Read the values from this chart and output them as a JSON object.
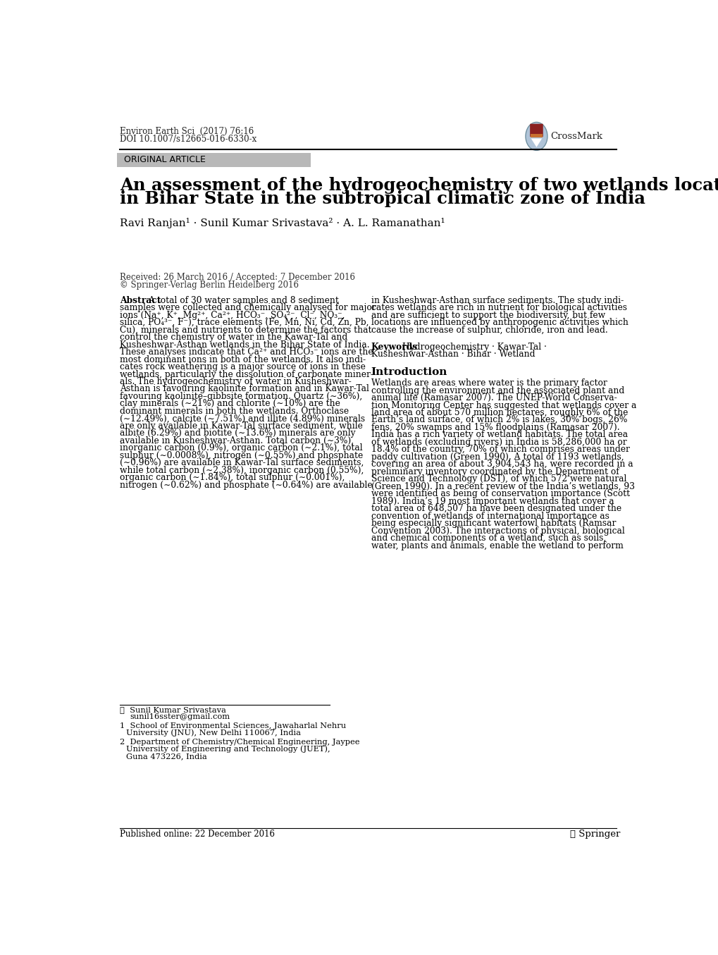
{
  "journal_line1": "Environ Earth Sci  (2017) 76:16",
  "journal_line2": "DOI 10.1007/s12665-016-6330-x",
  "original_article": "ORIGINAL ARTICLE",
  "title_line1": "An assessment of the hydrogeochemistry of two wetlands located",
  "title_line2": "in Bihar State in the subtropical climatic zone of India",
  "authors": "Ravi Ranjan¹ · Sunil Kumar Srivastava² · A. L. Ramanathan¹",
  "received": "Received: 26 March 2016 / Accepted: 7 December 2016",
  "copyright": "© Springer-Verlag Berlin Heidelberg 2016",
  "abstract_title": "Abstract",
  "abstract_col1_line0": "A total of 30 water samples and 8 sediment",
  "abstract_col1": [
    "samples were collected and chemically analysed for major",
    "ions (Na⁺, K⁺, Mg²⁺, Ca²⁺, HCO₃⁻, SO₄²⁻, Cl⁻, NO₃⁻,",
    "silica, PO₄³⁻, F⁻), trace elements (Fe, Mn, Ni, Cd, Zn, Pb,",
    "Cu), minerals and nutrients to determine the factors that",
    "control the chemistry of water in the Kawar-Tal and",
    "Kusheshwar-Asthan wetlands in the Bihar State of India.",
    "These analyses indicate that Ca²⁺ and HCO₃⁻ ions are the",
    "most dominant ions in both of the wetlands. It also indi-",
    "cates rock weathering is a major source of ions in these",
    "wetlands, particularly the dissolution of carbonate miner-",
    "als. The hydrogeochemistry of water in Kusheshwar-",
    "Asthan is favouring kaolinite formation and in Kawar-Tal",
    "favouring kaolinite–gibbsite formation. Quartz (∼36%),",
    "clay minerals (∼21%) and chlorite (∼10%) are the",
    "dominant minerals in both the wetlands. Orthoclase",
    "(∼12.49%), calcite (∼7.51%) and illite (4.89%) minerals",
    "are only available in Kawar-Tal surface sediment, while",
    "albite (6.29%) and biotite (∼13.6%) minerals are only",
    "available in Kusheshwar-Asthan. Total carbon (∼3%),",
    "inorganic carbon (0.9%), organic carbon (∼2.1%), total",
    "sulphur (∼0.0008%), nitrogen (∼0.55%) and phosphate",
    "(∼0.96%) are available in Kawar-Tal surface sediments,",
    "while total carbon (∼2.38%), inorganic carbon (0.55%),",
    "organic carbon (∼1.84%), total sulphur (∼0.001%),",
    "nitrogen (∼0.62%) and phosphate (∼0.64%) are available"
  ],
  "abstract_col2": [
    "in Kusheshwar-Asthan surface sediments. The study indi-",
    "cates wetlands are rich in nutrient for biological activities",
    "and are sufficient to support the biodiversity, but few",
    "locations are influenced by anthropogenic activities which",
    "cause the increase of sulphur, chloride, iron and lead."
  ],
  "keywords_title": "Keywords",
  "keywords_line1": "Hydrogeochemistry · Kawar-Tal ·",
  "keywords_line2": "Kusheshwar-Asthan · Bihar · Wetland",
  "intro_title": "Introduction",
  "intro_text": [
    "Wetlands are areas where water is the primary factor",
    "controlling the environment and the associated plant and",
    "animal life (Ramasar 2007). The UNEP-World Conserva-",
    "tion Monitoring Center has suggested that wetlands cover a",
    "land area of about 570 million hectares, roughly 6% of the",
    "Earth’s land surface, of which 2% is lakes, 30% bogs, 26%",
    "fens, 20% swamps and 15% floodplains (Ramasar 2007).",
    "India has a rich variety of wetland habitats. The total area",
    "of wetlands (excluding rivers) in India is 58,286,000 ha or",
    "18.4% of the country, 70% of which comprises areas under",
    "paddy cultivation (Green 1990). A total of 1193 wetlands,",
    "covering an area of about 3,904,543 ha, were recorded in a",
    "preliminary inventory coordinated by the Department of",
    "Science and Technology (DST), of which 572 were natural",
    "(Green 1990). In a recent review of the India’s wetlands, 93",
    "were identified as being of conservation importance (Scott",
    "1989). India’s 19 most important wetlands that cover a",
    "total area of 648,507 ha have been designated under the",
    "convention of wetlands of international importance as",
    "being especially significant waterfowl habitats (Ramsar",
    "Convention 2003). The interactions of physical, biological",
    "and chemical components of a wetland, such as soils,",
    "water, plants and animals, enable the wetland to perform"
  ],
  "footnote_contact_line1": "✉  Sunil Kumar Srivastava",
  "footnote_contact_line2": "sunil16sster@gmail.com",
  "footnote1_line1": "1  School of Environmental Sciences, Jawaharlal Nehru",
  "footnote1_line2": "   University (JNU), New Delhi 110067, India",
  "footnote2_line1": "2  Department of Chemistry/Chemical Engineering, Jaypee",
  "footnote2_line2": "   University of Engineering and Technology (JUET),",
  "footnote2_line3": "   Guna 473226, India",
  "published": "Published online: 22 December 2016",
  "springer_text": "ℓ Springer",
  "bg_color": "#ffffff",
  "text_color": "#000000",
  "article_box_color": "#b8b8b8",
  "line_color": "#000000"
}
